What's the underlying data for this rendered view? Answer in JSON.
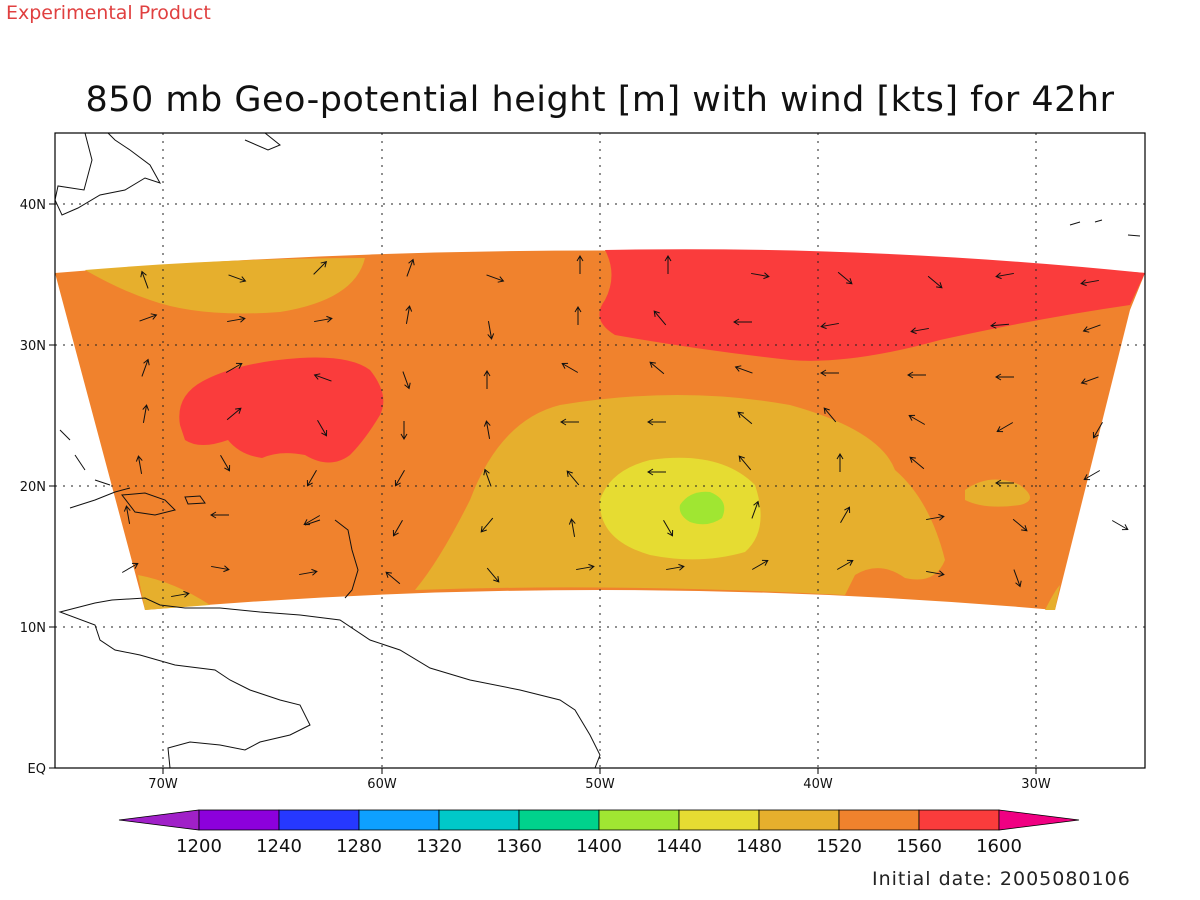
{
  "header": {
    "badge": "Experimental Product",
    "title": "850 mb Geo-potential height [m] with wind [kts] for 42hr"
  },
  "footer": {
    "initial_date": "Initial date: 2005080106"
  },
  "map": {
    "lon_range": [
      -75,
      -25
    ],
    "lat_range": [
      0,
      45
    ],
    "lat_labels": [
      "EQ",
      "10N",
      "20N",
      "30N",
      "40N"
    ],
    "lon_labels": [
      "70W",
      "60W",
      "50W",
      "40W",
      "30W"
    ],
    "grid": true
  },
  "colorbar": {
    "levels": [
      "1200",
      "1240",
      "1280",
      "1320",
      "1360",
      "1400",
      "1440",
      "1480",
      "1520",
      "1560",
      "1600"
    ],
    "colors": [
      "#a020c8",
      "#8c00dc",
      "#2638ff",
      "#0ea0ff",
      "#00c8c8",
      "#00d28c",
      "#a0e632",
      "#e6dc32",
      "#e6af2d",
      "#f0822d",
      "#fa3c3c",
      "#f00082"
    ]
  },
  "fill_colors": {
    "h1480": "#e6dc32",
    "h1440": "#a0e632",
    "h1520": "#e6af2d",
    "h1560": "#f0822d",
    "h1600": "#fa3c3c"
  }
}
